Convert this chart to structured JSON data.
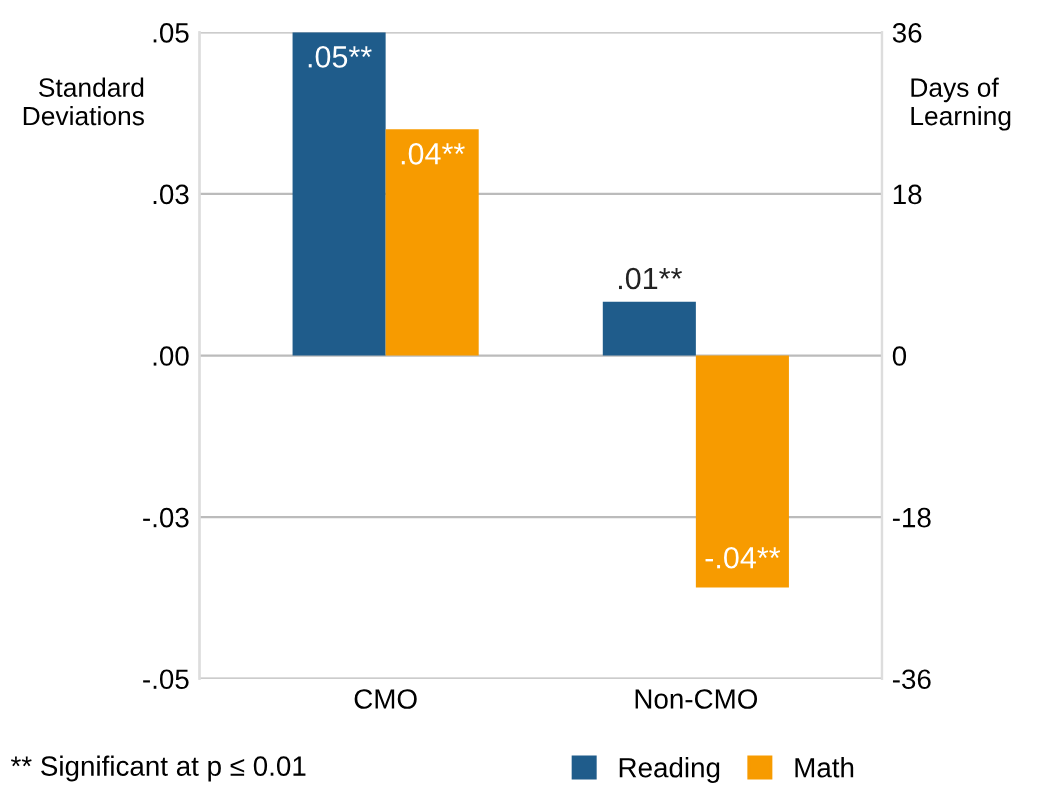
{
  "chart_data": {
    "type": "bar",
    "categories": [
      "CMO",
      "Non-CMO"
    ],
    "series": [
      {
        "name": "Reading",
        "color": "#1f5c8b",
        "values": [
          0.05,
          0.0083
        ],
        "value_labels": [
          ".05**",
          ".01**"
        ]
      },
      {
        "name": "Math",
        "color": "#f79b00",
        "values": [
          0.035,
          -0.0359
        ],
        "value_labels": [
          ".04**",
          "-.04**"
        ]
      }
    ],
    "ylabel": "Standard Deviations",
    "y2label": "Days of Learning",
    "ylim": [
      -0.05,
      0.05
    ],
    "yticks": [
      {
        "value": -0.05,
        "label": "-.05"
      },
      {
        "value": -0.025,
        "label": "-.03"
      },
      {
        "value": 0,
        "label": ".00"
      },
      {
        "value": 0.025,
        "label": ".03"
      },
      {
        "value": 0.05,
        "label": ".05"
      }
    ],
    "y2lim": [
      -36,
      36
    ],
    "y2ticks": [
      -36,
      -18,
      0,
      18,
      36
    ],
    "annotations": [
      "** Significant at p ≤ 0.01"
    ],
    "grid": "y",
    "legend": "bottom"
  }
}
